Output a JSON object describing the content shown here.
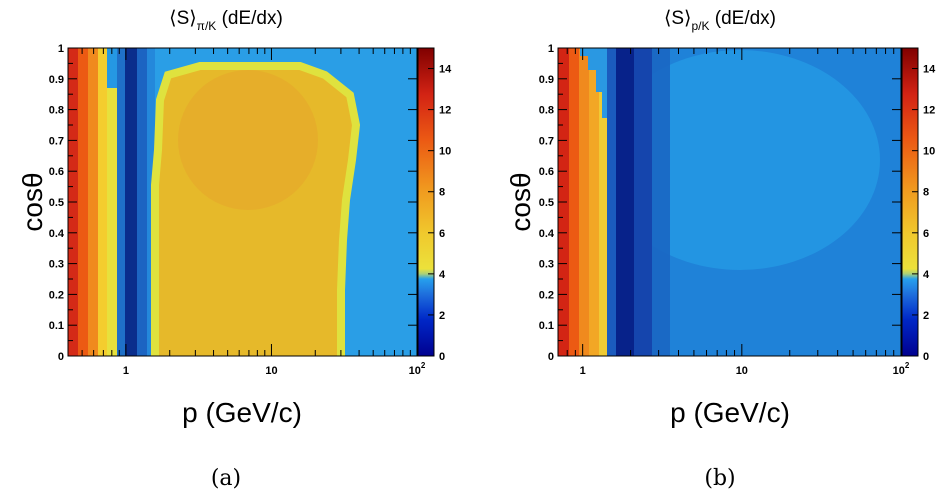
{
  "chart_data": [
    {
      "type": "heatmap",
      "title_main": "⟨S⟩",
      "title_sub": "π/K",
      "title_suffix": " (dE/dx)",
      "xlabel": "p (GeV/c)",
      "ylabel": "cosθ",
      "x_scale": "log",
      "xlim": [
        0.4,
        100
      ],
      "ylim": [
        0,
        1
      ],
      "x_ticks": [
        {
          "v": 1,
          "label": "1"
        },
        {
          "v": 10,
          "label": "10"
        },
        {
          "v": 100,
          "label": "10",
          "exp": "2"
        }
      ],
      "y_ticks": [
        "0",
        "0.1",
        "0.2",
        "0.3",
        "0.4",
        "0.5",
        "0.6",
        "0.7",
        "0.8",
        "0.9",
        "1"
      ],
      "z_range": [
        0,
        15
      ],
      "z_ticks": [
        "0",
        "2",
        "4",
        "6",
        "8",
        "10",
        "12",
        "14"
      ],
      "caption": "(a)",
      "regions": [
        {
          "p_min": 0.4,
          "p_max": 0.5,
          "value": 10.5
        },
        {
          "p_min": 0.5,
          "p_max": 0.6,
          "value": 8.0
        },
        {
          "p_min": 0.6,
          "p_max": 0.7,
          "value": 6.2
        },
        {
          "p_min": 0.7,
          "p_max": 0.8,
          "value": 3.8
        },
        {
          "p_min": 0.8,
          "p_max": 0.9,
          "value": 2.4
        },
        {
          "p_min": 0.9,
          "p_max": 1.1,
          "value": 0.7
        },
        {
          "p_min": 1.1,
          "p_max": 1.3,
          "value": 1.6
        },
        {
          "p_min": 1.3,
          "p_max": 1.5,
          "value": 2.5
        },
        {
          "p_min": 1.5,
          "p_max": 30,
          "value": 5.3,
          "cos_max_at_p": [
            [
              1.5,
              0.7
            ],
            [
              1.6,
              0.85
            ],
            [
              1.8,
              0.93
            ],
            [
              2.5,
              0.96
            ],
            [
              15,
              0.96
            ],
            [
              22,
              0.9
            ],
            [
              28,
              0.82
            ],
            [
              30,
              0.75
            ]
          ]
        },
        {
          "p_min": 30,
          "p_max": 100,
          "value": 2.6
        }
      ]
    },
    {
      "type": "heatmap",
      "title_main": "⟨S⟩",
      "title_sub": "p/K",
      "title_suffix": " (dE/dx)",
      "xlabel": "p (GeV/c)",
      "ylabel": "cosθ",
      "x_scale": "log",
      "xlim": [
        0.7,
        100
      ],
      "ylim": [
        0,
        1
      ],
      "x_ticks": [
        {
          "v": 1,
          "label": "1"
        },
        {
          "v": 10,
          "label": "10"
        },
        {
          "v": 100,
          "label": "10",
          "exp": "2"
        }
      ],
      "y_ticks": [
        "0",
        "0.1",
        "0.2",
        "0.3",
        "0.4",
        "0.5",
        "0.6",
        "0.7",
        "0.8",
        "0.9",
        "1"
      ],
      "z_range": [
        0,
        15
      ],
      "z_ticks": [
        "0",
        "2",
        "4",
        "6",
        "8",
        "10",
        "12",
        "14"
      ],
      "caption": "(b)",
      "regions": [
        {
          "p_min": 0.7,
          "p_max": 0.85,
          "value": 11.0
        },
        {
          "p_min": 0.85,
          "p_max": 1.0,
          "value": 8.5
        },
        {
          "p_min": 1.0,
          "p_max": 1.15,
          "value": 6.8
        },
        {
          "p_min": 1.15,
          "p_max": 1.3,
          "value": 5.4
        },
        {
          "p_min": 1.3,
          "p_max": 1.5,
          "value": 4.6
        },
        {
          "p_min": 1.5,
          "p_max": 2.0,
          "value": 1.4
        },
        {
          "p_min": 2.0,
          "p_max": 2.6,
          "value": 0.7
        },
        {
          "p_min": 2.6,
          "p_max": 100,
          "value": 2.2
        }
      ]
    }
  ]
}
